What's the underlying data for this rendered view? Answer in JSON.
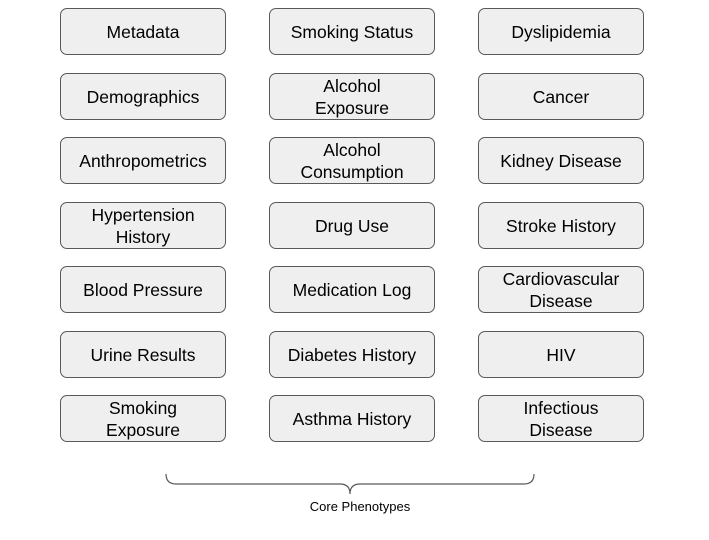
{
  "boxes": [
    [
      "Metadata",
      "Smoking Status",
      "Dyslipidemia"
    ],
    [
      "Demographics",
      "Alcohol Exposure",
      "Cancer"
    ],
    [
      "Anthropometrics",
      "Alcohol Consumption",
      "Kidney Disease"
    ],
    [
      "Hypertension History",
      "Drug Use",
      "Stroke History"
    ],
    [
      "Blood Pressure",
      "Medication Log",
      "Cardiovascular Disease"
    ],
    [
      "Urine Results",
      "Diabetes History",
      "HIV"
    ],
    [
      "Smoking Exposure",
      "Asthma History",
      "Infectious Disease"
    ]
  ],
  "caption": "Core Phenotypes"
}
